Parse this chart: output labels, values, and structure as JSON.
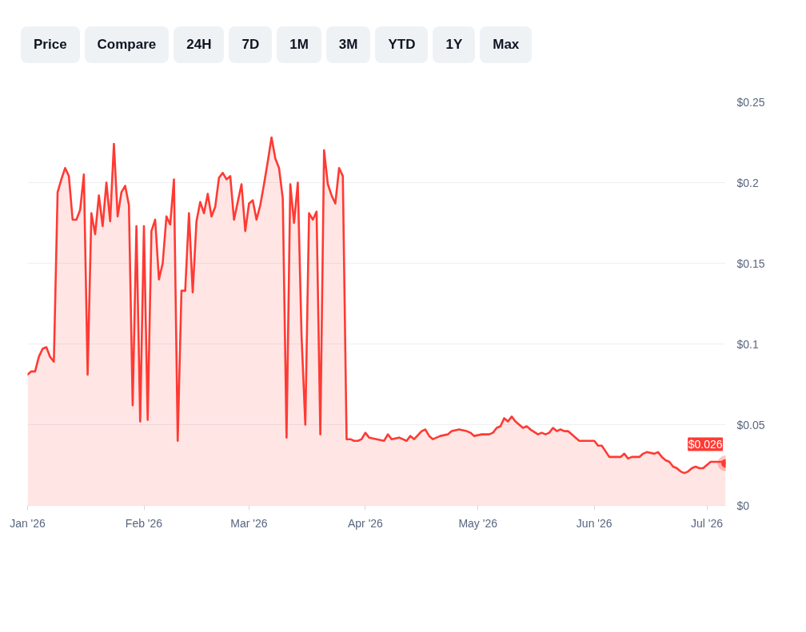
{
  "chart_data": {
    "type": "area",
    "x": [
      "2026-01-01",
      "2026-01-02",
      "2026-01-03",
      "2026-01-04",
      "2026-01-05",
      "2026-01-06",
      "2026-01-07",
      "2026-01-08",
      "2026-01-09",
      "2026-01-10",
      "2026-01-11",
      "2026-01-12",
      "2026-01-13",
      "2026-01-14",
      "2026-01-15",
      "2026-01-16",
      "2026-01-17",
      "2026-01-18",
      "2026-01-19",
      "2026-01-20",
      "2026-01-21",
      "2026-01-22",
      "2026-01-23",
      "2026-01-24",
      "2026-01-25",
      "2026-01-26",
      "2026-01-27",
      "2026-01-28",
      "2026-01-29",
      "2026-01-30",
      "2026-01-31",
      "2026-02-01",
      "2026-02-02",
      "2026-02-03",
      "2026-02-04",
      "2026-02-05",
      "2026-02-06",
      "2026-02-07",
      "2026-02-08",
      "2026-02-09",
      "2026-02-10",
      "2026-02-11",
      "2026-02-12",
      "2026-02-13",
      "2026-02-14",
      "2026-02-15",
      "2026-02-16",
      "2026-02-17",
      "2026-02-18",
      "2026-02-19",
      "2026-02-20",
      "2026-02-21",
      "2026-02-22",
      "2026-02-23",
      "2026-02-24",
      "2026-02-25",
      "2026-02-26",
      "2026-02-27",
      "2026-02-28",
      "2026-03-01",
      "2026-03-02",
      "2026-03-03",
      "2026-03-04",
      "2026-03-05",
      "2026-03-06",
      "2026-03-07",
      "2026-03-08",
      "2026-03-09",
      "2026-03-10",
      "2026-03-11",
      "2026-03-12",
      "2026-03-13",
      "2026-03-14",
      "2026-03-15",
      "2026-03-16",
      "2026-03-17",
      "2026-03-18",
      "2026-03-19",
      "2026-03-20",
      "2026-03-21",
      "2026-03-22",
      "2026-03-23",
      "2026-03-24",
      "2026-03-25",
      "2026-03-26",
      "2026-03-27",
      "2026-03-28",
      "2026-03-29",
      "2026-03-30",
      "2026-03-31",
      "2026-04-01",
      "2026-04-02",
      "2026-04-04",
      "2026-04-06",
      "2026-04-07",
      "2026-04-08",
      "2026-04-10",
      "2026-04-12",
      "2026-04-13",
      "2026-04-14",
      "2026-04-16",
      "2026-04-17",
      "2026-04-18",
      "2026-04-19",
      "2026-04-21",
      "2026-04-23",
      "2026-04-24",
      "2026-04-26",
      "2026-04-28",
      "2026-04-29",
      "2026-04-30",
      "2026-05-02",
      "2026-05-04",
      "2026-05-05",
      "2026-05-06",
      "2026-05-07",
      "2026-05-08",
      "2026-05-09",
      "2026-05-10",
      "2026-05-11",
      "2026-05-12",
      "2026-05-13",
      "2026-05-14",
      "2026-05-15",
      "2026-05-17",
      "2026-05-18",
      "2026-05-19",
      "2026-05-20",
      "2026-05-21",
      "2026-05-22",
      "2026-05-23",
      "2026-05-24",
      "2026-05-25",
      "2026-05-27",
      "2026-05-28",
      "2026-05-31",
      "2026-06-01",
      "2026-06-02",
      "2026-06-03",
      "2026-06-05",
      "2026-06-07",
      "2026-06-08",
      "2026-06-09",
      "2026-06-10",
      "2026-06-11",
      "2026-06-13",
      "2026-06-14",
      "2026-06-15",
      "2026-06-17",
      "2026-06-18",
      "2026-06-19",
      "2026-06-20",
      "2026-06-21",
      "2026-06-22",
      "2026-06-23",
      "2026-06-24",
      "2026-06-25",
      "2026-06-26",
      "2026-06-27",
      "2026-06-28",
      "2026-06-29",
      "2026-06-30",
      "2026-07-01",
      "2026-07-02",
      "2026-07-04",
      "2026-07-05",
      "2026-07-06"
    ],
    "series": [
      {
        "color": "#ff3a33",
        "values": [
          0.081,
          0.083,
          0.083,
          0.092,
          0.097,
          0.098,
          0.092,
          0.089,
          0.194,
          0.202,
          0.209,
          0.204,
          0.177,
          0.177,
          0.183,
          0.205,
          0.081,
          0.181,
          0.168,
          0.192,
          0.173,
          0.2,
          0.176,
          0.224,
          0.179,
          0.194,
          0.198,
          0.186,
          0.062,
          0.173,
          0.052,
          0.173,
          0.053,
          0.17,
          0.177,
          0.14,
          0.15,
          0.179,
          0.174,
          0.202,
          0.04,
          0.133,
          0.133,
          0.181,
          0.132,
          0.176,
          0.188,
          0.181,
          0.193,
          0.179,
          0.185,
          0.203,
          0.206,
          0.202,
          0.204,
          0.177,
          0.188,
          0.199,
          0.17,
          0.187,
          0.189,
          0.177,
          0.186,
          0.199,
          0.213,
          0.228,
          0.215,
          0.209,
          0.19,
          0.042,
          0.199,
          0.175,
          0.2,
          0.105,
          0.05,
          0.181,
          0.177,
          0.182,
          0.044,
          0.22,
          0.199,
          0.192,
          0.187,
          0.209,
          0.204,
          0.041,
          0.041,
          0.04,
          0.04,
          0.041,
          0.045,
          0.042,
          0.041,
          0.04,
          0.044,
          0.041,
          0.042,
          0.04,
          0.043,
          0.041,
          0.046,
          0.047,
          0.043,
          0.041,
          0.043,
          0.044,
          0.046,
          0.047,
          0.046,
          0.045,
          0.043,
          0.044,
          0.044,
          0.045,
          0.048,
          0.049,
          0.054,
          0.052,
          0.055,
          0.052,
          0.05,
          0.048,
          0.049,
          0.047,
          0.044,
          0.045,
          0.044,
          0.045,
          0.048,
          0.046,
          0.047,
          0.046,
          0.046,
          0.042,
          0.04,
          0.04,
          0.04,
          0.037,
          0.037,
          0.03,
          0.03,
          0.03,
          0.032,
          0.029,
          0.03,
          0.03,
          0.032,
          0.033,
          0.032,
          0.033,
          0.03,
          0.028,
          0.027,
          0.024,
          0.023,
          0.021,
          0.02,
          0.021,
          0.023,
          0.024,
          0.023,
          0.023,
          0.025,
          0.027,
          0.027,
          0.027,
          0.026
        ]
      }
    ],
    "xlim": [
      "2026-01-01",
      "2026-07-06"
    ],
    "xticks": [
      {
        "value": "2026-01-01",
        "label": "Jan '26"
      },
      {
        "value": "2026-02-01",
        "label": "Feb '26"
      },
      {
        "value": "2026-03-01",
        "label": "Mar '26"
      },
      {
        "value": "2026-04-01",
        "label": "Apr '26"
      },
      {
        "value": "2026-05-01",
        "label": "May '26"
      },
      {
        "value": "2026-06-01",
        "label": "Jun '26"
      },
      {
        "value": "2026-07-01",
        "label": "Jul '26"
      }
    ],
    "ylim": [
      0,
      0.25
    ],
    "yticks": [
      {
        "value": 0,
        "label": "$0"
      },
      {
        "value": 0.05,
        "label": "$0.05"
      },
      {
        "value": 0.1,
        "label": "$0.1"
      },
      {
        "value": 0.15,
        "label": "$0.15"
      },
      {
        "value": 0.2,
        "label": "$0.2"
      },
      {
        "value": 0.25,
        "label": "$0.25"
      }
    ],
    "grid": "y",
    "annotations": [
      "Price",
      "Compare",
      "24H",
      "7D",
      "1M",
      "3M",
      "YTD",
      "1Y",
      "Max",
      {
        "text": "$0.026",
        "x": "2026-07-06",
        "y": 0.026
      }
    ]
  }
}
